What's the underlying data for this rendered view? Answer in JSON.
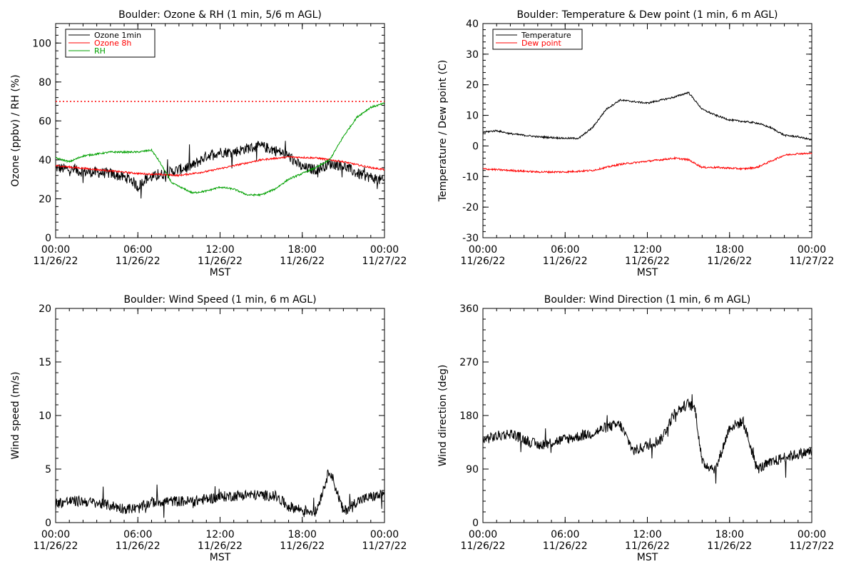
{
  "colors": {
    "black": "#000000",
    "red": "#ff0000",
    "green": "#00a000"
  },
  "chart_data": [
    {
      "type": "line",
      "title": "Boulder: Ozone & RH (1 min, 5/6 m AGL)",
      "ylabel": "Ozone (ppbv) / RH (%)",
      "xlabel": "MST",
      "ylim": [
        0,
        110
      ],
      "yticks": [
        0,
        20,
        40,
        60,
        80,
        100
      ],
      "x_ticks": [
        [
          "00:00",
          "11/26/22"
        ],
        [
          "06:00",
          "11/26/22"
        ],
        [
          "12:00",
          "11/26/22"
        ],
        [
          "18:00",
          "11/26/22"
        ],
        [
          "00:00",
          "11/27/22"
        ]
      ],
      "legend_position": "top-left",
      "reference_line": {
        "y": 70,
        "color": "#ff0000",
        "style": "dotted"
      },
      "series": [
        {
          "name": "Ozone 1min",
          "color": "#000000",
          "noisy": true,
          "x": [
            "11/26/22 00:00",
            "11/26/22 02:00",
            "11/26/22 04:00",
            "11/26/22 05:30",
            "11/26/22 06:00",
            "11/26/22 06:30",
            "11/26/22 08:00",
            "11/26/22 10:00",
            "11/26/22 11:00",
            "11/26/22 12:00",
            "11/26/22 13:00",
            "11/26/22 14:00",
            "11/26/22 15:00",
            "11/26/22 16:00",
            "11/26/22 17:00",
            "11/26/22 18:00",
            "11/26/22 19:00",
            "11/26/22 20:00",
            "11/26/22 21:00",
            "11/26/22 22:00",
            "11/26/22 23:00",
            "11/27/22 00:00"
          ],
          "y": [
            36,
            34,
            33,
            30,
            26,
            30,
            33,
            37,
            42,
            44,
            44,
            46,
            47,
            45,
            42,
            36,
            35,
            38,
            37,
            33,
            31,
            29
          ]
        },
        {
          "name": "Ozone 8h",
          "color": "#ff0000",
          "noisy": false,
          "x": [
            "11/26/22 00:00",
            "11/26/22 03:00",
            "11/26/22 06:00",
            "11/26/22 09:00",
            "11/26/22 11:00",
            "11/26/22 13:00",
            "11/26/22 15:00",
            "11/26/22 17:00",
            "11/26/22 19:00",
            "11/26/22 21:00",
            "11/26/22 23:00",
            "11/27/22 00:00"
          ],
          "y": [
            37,
            35,
            33,
            32,
            34,
            37,
            40,
            41.5,
            41,
            39,
            36,
            35
          ]
        },
        {
          "name": "RH",
          "color": "#00a000",
          "noisy": false,
          "x": [
            "11/26/22 00:00",
            "11/26/22 01:00",
            "11/26/22 02:00",
            "11/26/22 04:00",
            "11/26/22 06:00",
            "11/26/22 07:00",
            "11/26/22 07:30",
            "11/26/22 08:30",
            "11/26/22 10:00",
            "11/26/22 11:00",
            "11/26/22 12:00",
            "11/26/22 13:00",
            "11/26/22 14:00",
            "11/26/22 15:00",
            "11/26/22 16:00",
            "11/26/22 17:00",
            "11/26/22 18:00",
            "11/26/22 19:00",
            "11/26/22 20:00",
            "11/26/22 21:00",
            "11/26/22 22:00",
            "11/26/22 23:00",
            "11/27/22 00:00"
          ],
          "y": [
            41,
            39,
            42,
            44,
            44,
            45,
            40,
            28,
            23,
            24,
            26,
            25,
            22,
            22,
            25,
            30,
            33,
            36,
            40,
            52,
            62,
            67,
            69
          ]
        }
      ]
    },
    {
      "type": "line",
      "title": "Boulder: Temperature & Dew point (1 min, 6 m AGL)",
      "ylabel": "Temperature / Dew point (C)",
      "xlabel": "MST",
      "ylim": [
        -30,
        40
      ],
      "yticks": [
        -30,
        -20,
        -10,
        0,
        10,
        20,
        30,
        40
      ],
      "x_ticks": [
        [
          "00:00",
          "11/26/22"
        ],
        [
          "06:00",
          "11/26/22"
        ],
        [
          "12:00",
          "11/26/22"
        ],
        [
          "18:00",
          "11/26/22"
        ],
        [
          "00:00",
          "11/27/22"
        ]
      ],
      "legend_position": "top-left",
      "series": [
        {
          "name": "Temperature",
          "color": "#000000",
          "noisy": false,
          "x": [
            "11/26/22 00:00",
            "11/26/22 01:00",
            "11/26/22 02:00",
            "11/26/22 04:00",
            "11/26/22 06:00",
            "11/26/22 07:00",
            "11/26/22 08:00",
            "11/26/22 09:00",
            "11/26/22 10:00",
            "11/26/22 11:00",
            "11/26/22 12:00",
            "11/26/22 13:00",
            "11/26/22 14:00",
            "11/26/22 15:00",
            "11/26/22 16:00",
            "11/26/22 17:00",
            "11/26/22 18:00",
            "11/26/22 19:00",
            "11/26/22 20:00",
            "11/26/22 21:00",
            "11/26/22 22:00",
            "11/26/22 23:00",
            "11/27/22 00:00"
          ],
          "y": [
            4.5,
            5,
            4,
            3,
            2.5,
            2.5,
            6,
            12,
            15,
            14.5,
            14,
            15,
            16,
            17.5,
            12,
            10,
            8.5,
            8,
            7.5,
            6,
            3.5,
            3,
            2
          ]
        },
        {
          "name": "Dew point",
          "color": "#ff0000",
          "noisy": false,
          "x": [
            "11/26/22 00:00",
            "11/26/22 02:00",
            "11/26/22 04:00",
            "11/26/22 06:00",
            "11/26/22 08:00",
            "11/26/22 10:00",
            "11/26/22 12:00",
            "11/26/22 14:00",
            "11/26/22 15:00",
            "11/26/22 16:00",
            "11/26/22 17:00",
            "11/26/22 19:00",
            "11/26/22 20:00",
            "11/26/22 21:00",
            "11/26/22 22:00",
            "11/26/22 23:00",
            "11/27/22 00:00"
          ],
          "y": [
            -7.5,
            -8,
            -8.5,
            -8.5,
            -8,
            -6,
            -5,
            -4,
            -4.5,
            -7,
            -7,
            -7.5,
            -7,
            -5,
            -3,
            -2.5,
            -2.5
          ]
        }
      ]
    },
    {
      "type": "line",
      "title": "Boulder: Wind Speed (1 min, 6 m AGL)",
      "ylabel": "Wind speed (m/s)",
      "xlabel": "MST",
      "ylim": [
        0,
        20
      ],
      "yticks": [
        0,
        5,
        10,
        15,
        20
      ],
      "x_ticks": [
        [
          "00:00",
          "11/26/22"
        ],
        [
          "06:00",
          "11/26/22"
        ],
        [
          "12:00",
          "11/26/22"
        ],
        [
          "18:00",
          "11/26/22"
        ],
        [
          "00:00",
          "11/27/22"
        ]
      ],
      "series": [
        {
          "name": "",
          "color": "#000000",
          "noisy": true,
          "x": [
            "11/26/22 00:00",
            "11/26/22 01:00",
            "11/26/22 02:00",
            "11/26/22 04:00",
            "11/26/22 05:00",
            "11/26/22 06:00",
            "11/26/22 07:00",
            "11/26/22 08:00",
            "11/26/22 10:00",
            "11/26/22 12:00",
            "11/26/22 14:00",
            "11/26/22 16:00",
            "11/26/22 17:00",
            "11/26/22 18:00",
            "11/26/22 19:00",
            "11/26/22 19:30",
            "11/26/22 20:00",
            "11/26/22 20:30",
            "11/26/22 21:00",
            "11/26/22 22:00",
            "11/26/22 23:00",
            "11/27/22 00:00"
          ],
          "y": [
            1.8,
            2.0,
            2.0,
            1.6,
            1.3,
            1.3,
            1.9,
            2.0,
            2.0,
            2.4,
            2.6,
            2.5,
            1.5,
            1.2,
            1.0,
            3.0,
            5.0,
            3.0,
            1.0,
            2.0,
            2.4,
            2.6
          ]
        }
      ]
    },
    {
      "type": "line",
      "title": "Boulder: Wind Direction (1 min, 6 m AGL)",
      "ylabel": "Wind direction (deg)",
      "xlabel": "MST",
      "ylim": [
        0,
        360
      ],
      "yticks": [
        0,
        90,
        180,
        270,
        360
      ],
      "x_ticks": [
        [
          "00:00",
          "11/26/22"
        ],
        [
          "06:00",
          "11/26/22"
        ],
        [
          "12:00",
          "11/26/22"
        ],
        [
          "18:00",
          "11/26/22"
        ],
        [
          "00:00",
          "11/27/22"
        ]
      ],
      "series": [
        {
          "name": "",
          "color": "#000000",
          "noisy": true,
          "x": [
            "11/26/22 00:00",
            "11/26/22 01:00",
            "11/26/22 02:00",
            "11/26/22 03:00",
            "11/26/22 04:00",
            "11/26/22 06:00",
            "11/26/22 08:00",
            "11/26/22 09:00",
            "11/26/22 10:00",
            "11/26/22 11:00",
            "11/26/22 12:00",
            "11/26/22 13:00",
            "11/26/22 14:00",
            "11/26/22 15:00",
            "11/26/22 15:30",
            "11/26/22 16:00",
            "11/26/22 17:00",
            "11/26/22 18:00",
            "11/26/22 19:00",
            "11/26/22 20:00",
            "11/26/22 21:00",
            "11/26/22 22:00",
            "11/26/22 23:00",
            "11/27/22 00:00"
          ],
          "y": [
            140,
            145,
            150,
            140,
            130,
            140,
            150,
            160,
            165,
            120,
            130,
            140,
            185,
            200,
            190,
            100,
            90,
            160,
            170,
            90,
            100,
            110,
            115,
            120
          ]
        }
      ]
    }
  ]
}
